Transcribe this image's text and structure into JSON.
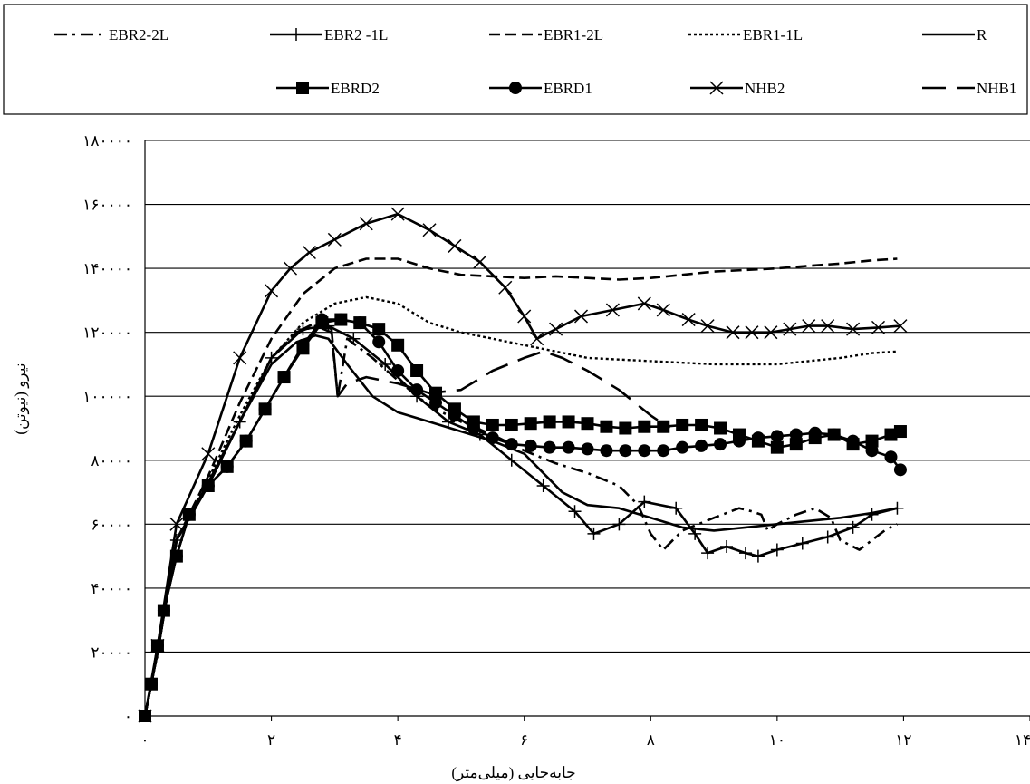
{
  "chart_data": {
    "type": "line",
    "title": "",
    "xlabel": "جابه‌جایی (میلی‌متر)",
    "ylabel": "نیرو (نیوتن)",
    "xlim": [
      0,
      14
    ],
    "ylim": [
      0,
      180000
    ],
    "x_ticks": [
      0,
      2,
      4,
      6,
      8,
      10,
      12,
      14
    ],
    "x_tick_labels": [
      "۰",
      "۲",
      "۴",
      "۶",
      "۸",
      "۱۰",
      "۱۲",
      "۱۴"
    ],
    "y_ticks": [
      0,
      20000,
      40000,
      60000,
      80000,
      100000,
      120000,
      140000,
      160000,
      180000
    ],
    "y_tick_labels": [
      "۰",
      "۲۰۰۰۰",
      "۴۰۰۰۰",
      "۶۰۰۰۰",
      "۸۰۰۰۰",
      "۱۰۰۰۰۰",
      "۱۲۰۰۰۰",
      "۱۴۰۰۰۰",
      "۱۶۰۰۰۰",
      "۱۸۰۰۰۰"
    ],
    "grid": "horizontal",
    "legend_position": "top",
    "series": [
      {
        "name": "EBR2-2L",
        "style": "dashdot",
        "marker": "none",
        "x": [
          0,
          0.2,
          0.5,
          1.0,
          1.5,
          2.0,
          2.4,
          2.7,
          2.95,
          3.05,
          3.2,
          3.6,
          4.0,
          4.5,
          5.0,
          5.5,
          6.0,
          6.5,
          7.0,
          7.5,
          7.8,
          8.0,
          8.2,
          8.5,
          9.0,
          9.4,
          9.6,
          9.75,
          9.85,
          10.0,
          10.3,
          10.6,
          10.85,
          11.0,
          11.3,
          11.7,
          11.9
        ],
        "y": [
          0,
          20000,
          55000,
          72000,
          92000,
          112000,
          120000,
          122000,
          120000,
          100000,
          118000,
          112000,
          105000,
          97000,
          92000,
          88000,
          83000,
          79000,
          76000,
          72000,
          66000,
          57000,
          52000,
          58000,
          62000,
          65000,
          64000,
          63000,
          58000,
          60000,
          63000,
          65000,
          62000,
          55000,
          52000,
          58000,
          60000
        ]
      },
      {
        "name": "EBR2 -1L",
        "style": "solid",
        "marker": "plus",
        "x": [
          0,
          0.2,
          0.5,
          1.0,
          1.5,
          2.0,
          2.5,
          2.9,
          3.3,
          3.8,
          4.3,
          4.8,
          5.3,
          5.8,
          6.3,
          6.8,
          7.1,
          7.5,
          7.9,
          8.4,
          8.7,
          8.9,
          9.2,
          9.5,
          9.7,
          10.0,
          10.4,
          10.8,
          11.2,
          11.5,
          11.9
        ],
        "y": [
          0,
          20000,
          55000,
          72000,
          92000,
          112000,
          121000,
          122000,
          118000,
          110000,
          100000,
          92000,
          88000,
          80000,
          72000,
          64000,
          57000,
          60000,
          67000,
          65000,
          57000,
          51000,
          53000,
          51000,
          50000,
          52000,
          54000,
          56000,
          59000,
          63000,
          65000
        ]
      },
      {
        "name": "EBR1-2L",
        "style": "dashed",
        "marker": "none",
        "x": [
          0,
          0.2,
          0.5,
          1.0,
          1.5,
          2.0,
          2.5,
          3.0,
          3.5,
          4.0,
          4.5,
          5.0,
          5.5,
          6.0,
          6.5,
          7.0,
          7.5,
          8.0,
          8.5,
          9.0,
          9.5,
          10.0,
          10.5,
          11.0,
          11.5,
          11.9
        ],
        "y": [
          0,
          20000,
          55000,
          75000,
          98000,
          118000,
          132000,
          140000,
          143000,
          143000,
          140000,
          138000,
          137500,
          137000,
          137500,
          137000,
          136500,
          137000,
          138000,
          139000,
          139500,
          140000,
          140800,
          141500,
          142500,
          143000
        ]
      },
      {
        "name": "EBR1-1L",
        "style": "dotted",
        "marker": "none",
        "x": [
          0,
          0.2,
          0.5,
          1.0,
          1.5,
          2.0,
          2.5,
          3.0,
          3.5,
          4.0,
          4.5,
          5.0,
          5.5,
          6.0,
          6.5,
          7.0,
          7.5,
          8.0,
          8.5,
          9.0,
          9.5,
          10.0,
          10.5,
          11.0,
          11.5,
          11.9
        ],
        "y": [
          0,
          20000,
          55000,
          74000,
          94000,
          112000,
          123000,
          129000,
          131000,
          129000,
          123000,
          120000,
          118000,
          116000,
          114000,
          112000,
          111500,
          111000,
          110500,
          110000,
          110000,
          110000,
          111000,
          112000,
          113500,
          114000
        ]
      },
      {
        "name": "R",
        "style": "solid",
        "marker": "none",
        "x": [
          0,
          0.2,
          0.5,
          1.0,
          1.5,
          2.0,
          2.4,
          2.7,
          2.9,
          3.2,
          3.6,
          4.0,
          4.5,
          5.0,
          5.5,
          6.0,
          6.3,
          6.6,
          7.0,
          7.5,
          8.0,
          8.5,
          9.0,
          9.5,
          10.0,
          10.5,
          11.0,
          11.5,
          11.9
        ],
        "y": [
          0,
          20000,
          55000,
          73000,
          92000,
          110000,
          117000,
          119000,
          118000,
          110000,
          100000,
          95000,
          92000,
          89000,
          86000,
          82000,
          76000,
          70000,
          66000,
          65000,
          62000,
          59000,
          58000,
          59000,
          60000,
          61000,
          62000,
          63500,
          65000
        ]
      },
      {
        "name": "EBRD2",
        "style": "solid",
        "marker": "square",
        "x": [
          0,
          0.1,
          0.2,
          0.3,
          0.5,
          0.7,
          1.0,
          1.3,
          1.6,
          1.9,
          2.2,
          2.5,
          2.8,
          3.1,
          3.4,
          3.7,
          4.0,
          4.3,
          4.6,
          4.9,
          5.2,
          5.5,
          5.8,
          6.1,
          6.4,
          6.7,
          7.0,
          7.3,
          7.6,
          7.9,
          8.2,
          8.5,
          8.8,
          9.1,
          9.4,
          9.7,
          10.0,
          10.3,
          10.6,
          10.9,
          11.2,
          11.5,
          11.8,
          11.95
        ],
        "y": [
          0,
          10000,
          22000,
          33000,
          50000,
          63000,
          72000,
          78000,
          86000,
          96000,
          106000,
          115000,
          123000,
          124000,
          123000,
          121000,
          116000,
          108000,
          101000,
          96000,
          92000,
          91000,
          91000,
          91500,
          92000,
          92000,
          91500,
          90500,
          90000,
          90500,
          90500,
          91000,
          91000,
          90000,
          88000,
          86000,
          84000,
          85000,
          87000,
          88000,
          85000,
          86000,
          88000,
          89000
        ]
      },
      {
        "name": "EBRD1",
        "style": "solid",
        "marker": "circle",
        "x": [
          0,
          0.1,
          0.2,
          0.3,
          0.5,
          0.7,
          1.0,
          1.3,
          1.6,
          1.9,
          2.2,
          2.5,
          2.8,
          3.1,
          3.4,
          3.7,
          4.0,
          4.3,
          4.6,
          4.9,
          5.2,
          5.5,
          5.8,
          6.1,
          6.4,
          6.7,
          7.0,
          7.3,
          7.6,
          7.9,
          8.2,
          8.5,
          8.8,
          9.1,
          9.4,
          9.7,
          10.0,
          10.3,
          10.6,
          10.9,
          11.2,
          11.5,
          11.8,
          11.95
        ],
        "y": [
          0,
          10000,
          22000,
          33000,
          50000,
          63000,
          72000,
          78000,
          86000,
          96000,
          106000,
          116000,
          124000,
          124000,
          123000,
          117000,
          108000,
          102000,
          98000,
          94000,
          90000,
          87000,
          85000,
          84500,
          84000,
          84000,
          83500,
          83000,
          83000,
          83000,
          83000,
          84000,
          84500,
          85000,
          86000,
          87000,
          87500,
          88000,
          88500,
          88000,
          86000,
          83000,
          81000,
          77000
        ]
      },
      {
        "name": "NHB2",
        "style": "solid",
        "marker": "x",
        "x": [
          0,
          0.2,
          0.5,
          1.0,
          1.5,
          2.0,
          2.3,
          2.6,
          3.0,
          3.5,
          4.0,
          4.5,
          4.9,
          5.3,
          5.7,
          6.0,
          6.2,
          6.5,
          6.9,
          7.4,
          7.9,
          8.2,
          8.6,
          8.9,
          9.3,
          9.6,
          9.9,
          10.2,
          10.5,
          10.8,
          11.2,
          11.6,
          11.95
        ],
        "y": [
          0,
          22000,
          60000,
          82000,
          112000,
          133000,
          140000,
          145000,
          149000,
          154000,
          157000,
          152000,
          147000,
          142000,
          134000,
          125000,
          118000,
          121000,
          125000,
          127000,
          129000,
          127000,
          124000,
          122000,
          120000,
          120000,
          120000,
          121000,
          122000,
          122000,
          121000,
          121500,
          122000
        ]
      },
      {
        "name": "NHB1",
        "style": "longdash",
        "marker": "none",
        "x": [
          0,
          0.2,
          0.5,
          1.0,
          1.5,
          2.0,
          2.4,
          2.7,
          2.95,
          3.05,
          3.2,
          3.5,
          4.0,
          4.5,
          5.0,
          5.5,
          6.0,
          6.3,
          6.6,
          7.0,
          7.5,
          8.0,
          8.3
        ],
        "y": [
          0,
          20000,
          55000,
          72000,
          92000,
          112000,
          120000,
          123000,
          121000,
          100000,
          104000,
          106000,
          104000,
          101000,
          102000,
          108000,
          112000,
          114000,
          112000,
          108000,
          102000,
          94000,
          90000
        ]
      }
    ]
  }
}
